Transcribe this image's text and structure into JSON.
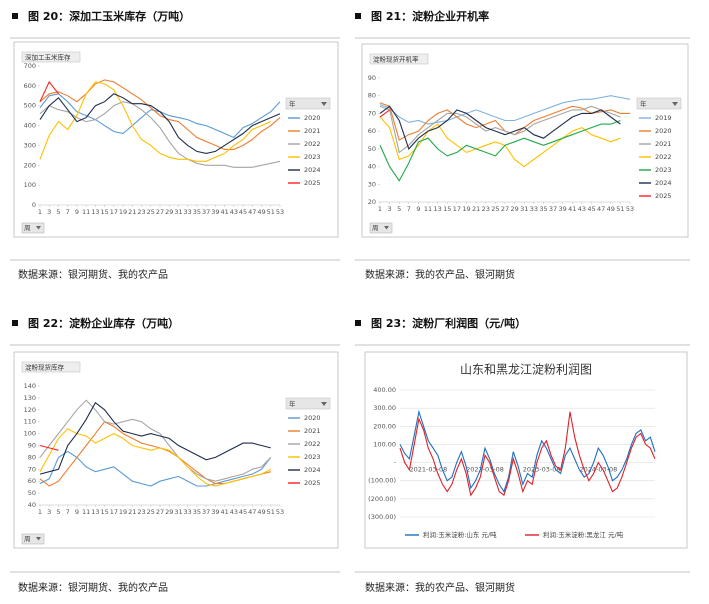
{
  "figures": [
    {
      "heading": "图 20：深加工玉米库存（万吨）",
      "source": "数据来源：银河期货、我的农产品"
    },
    {
      "heading": "图 21：淀粉企业开机率",
      "source": "数据来源：我的农产品、银河期货"
    },
    {
      "heading": "图 22：淀粉企业库存（万吨）",
      "source": "数据来源：银河期货、我的农产品"
    },
    {
      "heading": "图 23：淀粉厂利润图（元/吨）",
      "source": "数据来源：我的农产品、银河期货"
    }
  ],
  "chart_data": [
    {
      "type": "line",
      "title": "深加工玉米库存",
      "legend_title": "年",
      "x_filter": "周",
      "legend": "right",
      "x": [
        1,
        3,
        5,
        7,
        9,
        11,
        13,
        15,
        17,
        19,
        21,
        23,
        25,
        27,
        29,
        31,
        33,
        35,
        37,
        39,
        41,
        43,
        45,
        47,
        49,
        51,
        53
      ],
      "xlim": [
        1,
        53
      ],
      "xticks": [
        1,
        3,
        5,
        7,
        9,
        11,
        13,
        15,
        17,
        19,
        21,
        23,
        25,
        27,
        29,
        31,
        33,
        35,
        37,
        39,
        41,
        43,
        45,
        47,
        49,
        51,
        53
      ],
      "ylim": [
        0,
        700
      ],
      "yticks": [
        0,
        100,
        200,
        300,
        400,
        500,
        600,
        700
      ],
      "series": [
        {
          "name": "2020",
          "color": "#5b9bd5",
          "values": [
            490,
            550,
            560,
            520,
            470,
            450,
            430,
            400,
            370,
            360,
            400,
            440,
            480,
            470,
            450,
            440,
            430,
            410,
            400,
            380,
            360,
            340,
            390,
            410,
            440,
            470,
            520
          ]
        },
        {
          "name": "2021",
          "color": "#ed7d31",
          "values": [
            520,
            560,
            570,
            550,
            520,
            560,
            610,
            630,
            620,
            590,
            560,
            530,
            490,
            450,
            430,
            420,
            380,
            340,
            320,
            300,
            280,
            280,
            300,
            330,
            370,
            400,
            440
          ]
        },
        {
          "name": "2022",
          "color": "#a5a5a5",
          "values": [
            460,
            500,
            480,
            470,
            440,
            420,
            430,
            460,
            500,
            520,
            510,
            480,
            440,
            390,
            320,
            260,
            230,
            210,
            200,
            200,
            200,
            190,
            190,
            190,
            200,
            210,
            220
          ]
        },
        {
          "name": "2023",
          "color": "#ffc000",
          "values": [
            230,
            350,
            420,
            380,
            450,
            560,
            620,
            610,
            580,
            500,
            400,
            330,
            300,
            260,
            240,
            230,
            230,
            220,
            220,
            240,
            260,
            300,
            330,
            380,
            400,
            420,
            null
          ]
        },
        {
          "name": "2024",
          "color": "#1f2d4d",
          "values": [
            430,
            500,
            540,
            480,
            420,
            440,
            500,
            520,
            560,
            540,
            510,
            510,
            500,
            470,
            420,
            340,
            300,
            270,
            260,
            270,
            300,
            330,
            360,
            400,
            420,
            440,
            460
          ]
        },
        {
          "name": "2025",
          "color": "#ff2020",
          "values": [
            520,
            620,
            560,
            null,
            null,
            null,
            null,
            null,
            null,
            null,
            null,
            null,
            null,
            null,
            null,
            null,
            null,
            null,
            null,
            null,
            null,
            null,
            null,
            null,
            null,
            null,
            null
          ]
        }
      ]
    },
    {
      "type": "line",
      "title": "淀粉现货开机率",
      "legend_title": "年",
      "x_filter": "周",
      "legend": "right",
      "x": [
        1,
        3,
        5,
        7,
        9,
        11,
        13,
        15,
        17,
        19,
        21,
        23,
        25,
        27,
        29,
        31,
        33,
        35,
        37,
        39,
        41,
        43,
        45,
        47,
        49,
        51,
        53
      ],
      "xlim": [
        1,
        53
      ],
      "xticks": [
        1,
        3,
        5,
        7,
        9,
        11,
        13,
        15,
        17,
        19,
        21,
        23,
        25,
        27,
        29,
        31,
        33,
        35,
        37,
        39,
        41,
        43,
        45,
        47,
        49,
        51,
        53
      ],
      "ylim": [
        20,
        90
      ],
      "yticks": [
        20,
        30,
        40,
        50,
        60,
        70,
        80,
        90
      ],
      "series": [
        {
          "name": "2019",
          "color": "#7fb2e0",
          "values": [
            75,
            73,
            68,
            65,
            66,
            64,
            65,
            66,
            68,
            70,
            72,
            70,
            68,
            66,
            66,
            68,
            70,
            72,
            74,
            76,
            77,
            78,
            78,
            79,
            80,
            79,
            78
          ]
        },
        {
          "name": "2020",
          "color": "#ed7d31",
          "values": [
            76,
            74,
            55,
            58,
            60,
            66,
            70,
            72,
            68,
            64,
            62,
            64,
            66,
            60,
            58,
            62,
            66,
            68,
            70,
            72,
            74,
            73,
            70,
            71,
            72,
            70,
            70
          ]
        },
        {
          "name": "2021",
          "color": "#a5a5a5",
          "values": [
            74,
            72,
            48,
            52,
            58,
            62,
            66,
            70,
            70,
            68,
            64,
            60,
            62,
            60,
            58,
            60,
            64,
            66,
            68,
            70,
            72,
            72,
            74,
            72,
            70,
            68,
            null
          ]
        },
        {
          "name": "2022",
          "color": "#ffc000",
          "values": [
            68,
            62,
            44,
            46,
            52,
            60,
            64,
            56,
            52,
            48,
            50,
            52,
            54,
            52,
            44,
            40,
            44,
            48,
            52,
            56,
            60,
            62,
            58,
            56,
            54,
            56,
            null
          ]
        },
        {
          "name": "2023",
          "color": "#22a84a",
          "values": [
            52,
            40,
            32,
            42,
            54,
            56,
            50,
            46,
            48,
            52,
            50,
            48,
            46,
            52,
            54,
            56,
            54,
            52,
            54,
            56,
            58,
            60,
            62,
            64,
            64,
            66,
            null
          ]
        },
        {
          "name": "2024",
          "color": "#1f2d4d",
          "values": [
            70,
            74,
            66,
            50,
            56,
            60,
            62,
            66,
            72,
            70,
            66,
            62,
            60,
            58,
            60,
            62,
            58,
            56,
            60,
            64,
            68,
            70,
            70,
            72,
            68,
            64,
            null
          ]
        },
        {
          "name": "2025",
          "color": "#ff2020",
          "values": [
            68,
            72,
            null,
            null,
            null,
            null,
            null,
            null,
            null,
            null,
            null,
            null,
            null,
            null,
            null,
            null,
            null,
            null,
            null,
            null,
            null,
            null,
            null,
            null,
            null,
            null,
            null
          ]
        }
      ]
    },
    {
      "type": "line",
      "title": "淀粉现货库存",
      "legend_title": "年",
      "x_filter": "周",
      "legend": "right",
      "x": [
        1,
        3,
        5,
        7,
        9,
        11,
        13,
        15,
        17,
        19,
        21,
        23,
        25,
        27,
        29,
        31,
        33,
        35,
        37,
        39,
        41,
        43,
        45,
        47,
        49,
        51,
        53
      ],
      "xlim": [
        1,
        53
      ],
      "xticks": [
        1,
        3,
        5,
        7,
        9,
        11,
        13,
        15,
        17,
        19,
        21,
        23,
        25,
        27,
        29,
        31,
        33,
        35,
        37,
        39,
        41,
        43,
        45,
        47,
        49,
        51,
        53
      ],
      "ylim": [
        40,
        140
      ],
      "yticks": [
        40,
        50,
        60,
        70,
        80,
        90,
        100,
        110,
        120,
        130,
        140
      ],
      "series": [
        {
          "name": "2020",
          "color": "#5b9bd5",
          "values": [
            58,
            62,
            80,
            85,
            80,
            72,
            68,
            70,
            72,
            66,
            60,
            58,
            56,
            60,
            62,
            64,
            60,
            56,
            56,
            58,
            60,
            62,
            64,
            66,
            70,
            80,
            null
          ]
        },
        {
          "name": "2021",
          "color": "#ed7d31",
          "values": [
            62,
            56,
            60,
            70,
            80,
            90,
            100,
            110,
            106,
            100,
            96,
            92,
            90,
            88,
            85,
            80,
            74,
            68,
            62,
            58,
            58,
            60,
            62,
            64,
            66,
            68,
            null
          ]
        },
        {
          "name": "2022",
          "color": "#a5a5a5",
          "values": [
            80,
            90,
            100,
            110,
            120,
            128,
            120,
            110,
            108,
            110,
            112,
            110,
            104,
            100,
            90,
            80,
            72,
            66,
            62,
            60,
            62,
            64,
            66,
            70,
            72,
            80,
            null
          ]
        },
        {
          "name": "2023",
          "color": "#ffc000",
          "values": [
            68,
            82,
            96,
            104,
            100,
            98,
            92,
            96,
            100,
            96,
            90,
            88,
            86,
            88,
            86,
            80,
            72,
            64,
            58,
            56,
            58,
            60,
            62,
            64,
            66,
            70,
            null
          ]
        },
        {
          "name": "2024",
          "color": "#1f2d4d",
          "values": [
            66,
            68,
            70,
            90,
            100,
            112,
            126,
            120,
            110,
            102,
            100,
            98,
            100,
            98,
            96,
            90,
            86,
            82,
            78,
            80,
            84,
            88,
            92,
            92,
            90,
            88,
            null
          ]
        },
        {
          "name": "2025",
          "color": "#ff2020",
          "values": [
            90,
            88,
            86,
            null,
            null,
            null,
            null,
            null,
            null,
            null,
            null,
            null,
            null,
            null,
            null,
            null,
            null,
            null,
            null,
            null,
            null,
            null,
            null,
            null,
            null,
            null,
            null
          ]
        }
      ]
    },
    {
      "type": "line",
      "title": "山东和黑龙江淀粉利润图",
      "legend": "bottom",
      "grid": true,
      "categories": [
        null,
        null,
        null,
        null,
        null,
        null,
        "2021-03-08",
        null,
        null,
        null,
        null,
        null,
        null,
        null,
        null,
        null,
        null,
        null,
        "2022-03-08",
        null,
        null,
        null,
        null,
        null,
        null,
        null,
        null,
        null,
        null,
        null,
        "2023-03-08",
        null,
        null,
        null,
        null,
        null,
        null,
        null,
        null,
        null,
        null,
        null,
        "2024-03-08",
        null,
        null,
        null,
        null,
        null,
        null,
        null,
        null,
        null,
        null,
        null,
        null
      ],
      "ylim": [
        -300,
        400
      ],
      "yticks": [
        {
          "value": -300,
          "label": "(300.00)"
        },
        {
          "value": -200,
          "label": "(200.00)"
        },
        {
          "value": -100,
          "label": "(100.00)"
        },
        {
          "value": 0,
          "label": "-"
        },
        {
          "value": 100,
          "label": "100.00"
        },
        {
          "value": 200,
          "label": "200.00"
        },
        {
          "value": 300,
          "label": "300.00"
        },
        {
          "value": 400,
          "label": "400.00"
        }
      ],
      "series": [
        {
          "name": "利润:玉米淀粉:山东 元/吨",
          "color": "#1f6fc0",
          "values": [
            100,
            50,
            20,
            150,
            280,
            200,
            120,
            80,
            40,
            -40,
            -100,
            -80,
            0,
            60,
            -20,
            -140,
            -100,
            -40,
            80,
            20,
            -60,
            -120,
            -160,
            -80,
            60,
            -20,
            -120,
            -60,
            -80,
            40,
            120,
            80,
            20,
            -40,
            -60,
            40,
            80,
            20,
            -40,
            -80,
            -60,
            0,
            80,
            40,
            -20,
            -100,
            -80,
            -40,
            20,
            100,
            160,
            180,
            120,
            140,
            60
          ]
        },
        {
          "name": "利润:玉米淀粉:黑龙江 元/吨",
          "color": "#e0202a",
          "values": [
            80,
            0,
            -40,
            100,
            240,
            180,
            80,
            20,
            -60,
            -120,
            -160,
            -120,
            -40,
            20,
            -60,
            -180,
            -140,
            -80,
            40,
            0,
            -80,
            -160,
            -180,
            -100,
            20,
            -60,
            -160,
            -100,
            -120,
            0,
            80,
            120,
            40,
            -20,
            -40,
            80,
            280,
            140,
            40,
            -40,
            -100,
            -60,
            0,
            -40,
            -100,
            -160,
            -140,
            -80,
            0,
            80,
            140,
            160,
            100,
            80,
            20
          ]
        }
      ]
    }
  ]
}
